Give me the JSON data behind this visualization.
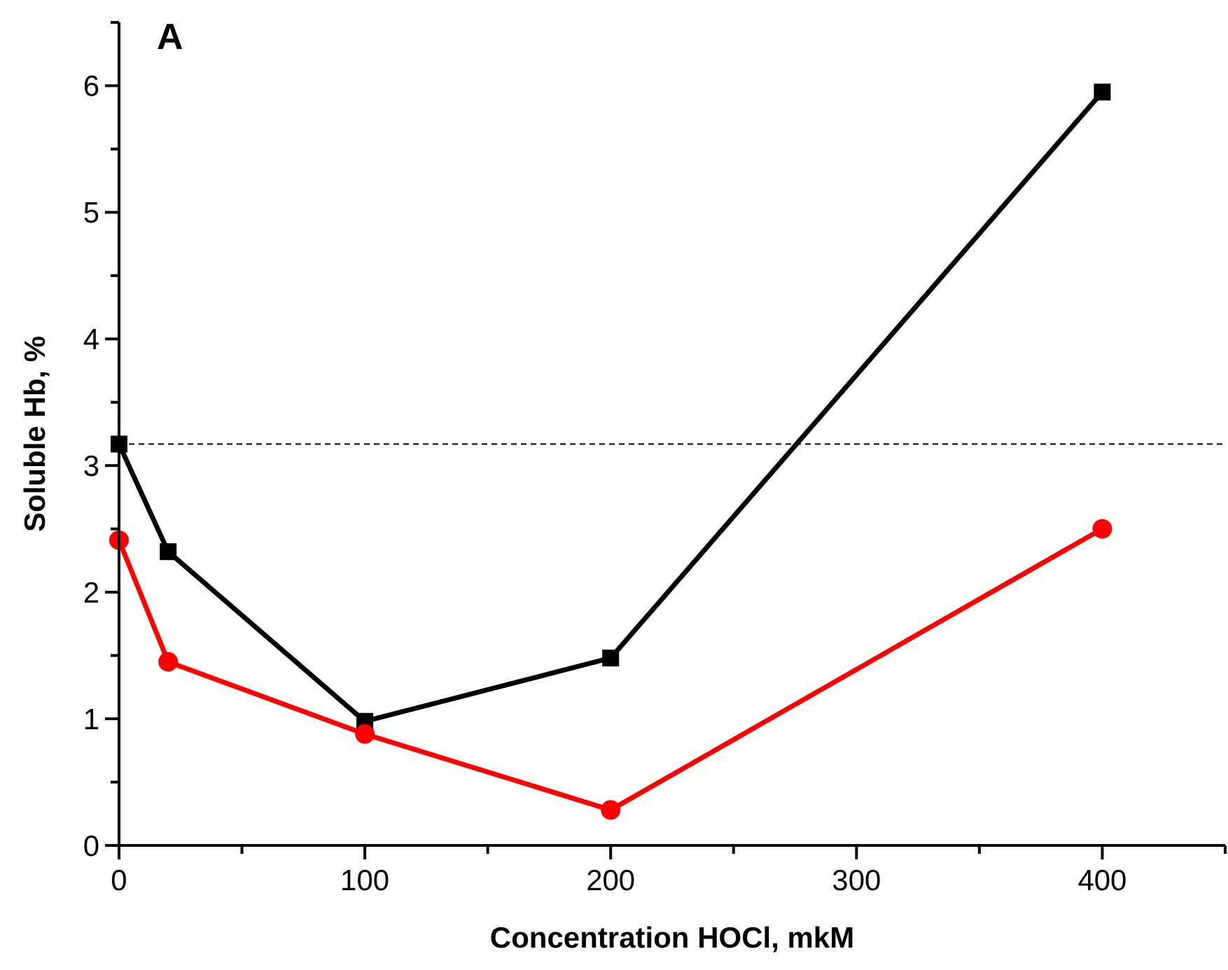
{
  "chart_data": {
    "type": "line",
    "xlabel": "Concentration HOCl, mkM",
    "ylabel": "Soluble Hb, %",
    "annotations": [
      "A"
    ],
    "x": [
      0,
      20,
      100,
      200,
      400
    ],
    "series": [
      {
        "color": "#000000",
        "marker": "square",
        "values": [
          3.17,
          2.32,
          0.98,
          1.48,
          5.95
        ]
      },
      {
        "color": "#ff0000",
        "marker": "circle",
        "values": [
          2.41,
          1.45,
          0.88,
          0.28,
          2.5
        ]
      }
    ],
    "xlim": [
      0,
      450
    ],
    "xticks": [
      0,
      {
        "value": 50,
        "label": null
      },
      100,
      {
        "value": 150,
        "label": null
      },
      200,
      {
        "value": 250,
        "label": null
      },
      300,
      {
        "value": 350,
        "label": null
      },
      400,
      {
        "value": 450,
        "label": null
      }
    ],
    "ylim": [
      0,
      6.5
    ],
    "yticks": [
      0,
      {
        "value": 0.5,
        "label": null
      },
      1,
      {
        "value": 1.5,
        "label": null
      },
      2,
      {
        "value": 2.5,
        "label": null
      },
      3,
      {
        "value": 3.5,
        "label": null
      },
      4,
      {
        "value": 4.5,
        "label": null
      },
      5,
      {
        "value": 5.5,
        "label": null
      },
      6,
      {
        "value": 6.5,
        "label": null
      }
    ],
    "ref_lines": [
      {
        "axis": "y",
        "value": 3.17,
        "color": "#000000",
        "line_style": "dashed"
      }
    ],
    "line_style": "solid"
  }
}
